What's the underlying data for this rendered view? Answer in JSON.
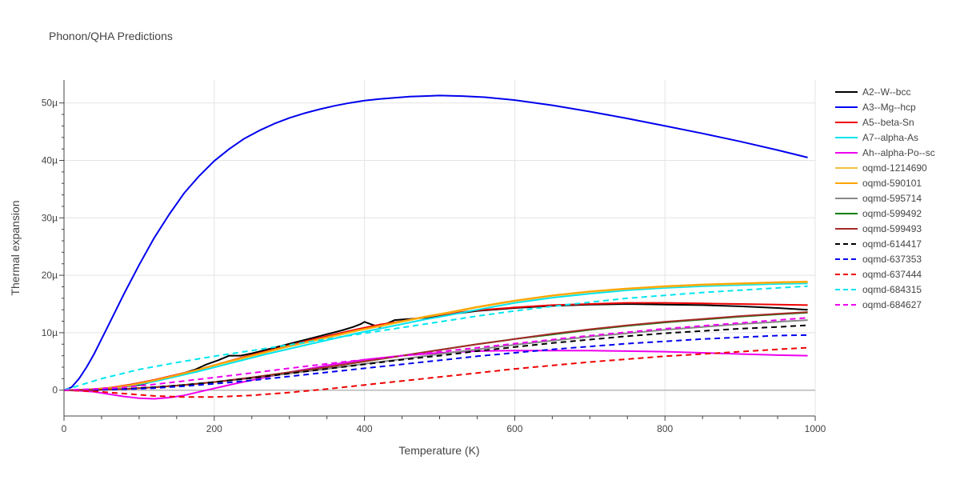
{
  "chart_data": {
    "type": "line",
    "title": "Phonon/QHA Predictions",
    "xlabel": "Temperature (K)",
    "ylabel": "Thermal expansion",
    "xlim": [
      0,
      1000
    ],
    "ylim": [
      -4.5,
      54
    ],
    "x_ticks": [
      0,
      200,
      400,
      600,
      800,
      1000
    ],
    "x_tick_labels": [
      "0",
      "200",
      "400",
      "600",
      "800",
      "1000"
    ],
    "y_ticks": [
      0,
      10,
      20,
      30,
      40,
      50
    ],
    "y_tick_labels": [
      "0",
      "10µ",
      "20µ",
      "30µ",
      "40µ",
      "50µ"
    ],
    "grid": true,
    "legend_position": "right",
    "series": [
      {
        "name": "A2--W--bcc",
        "color": "#000000",
        "dash": "solid",
        "x": [
          0,
          40,
          55,
          70,
          85,
          100,
          115,
          130,
          145,
          160,
          175,
          190,
          205,
          220,
          235,
          250,
          265,
          280,
          295,
          310,
          325,
          340,
          355,
          370,
          385,
          395,
          400,
          410,
          420,
          430,
          440,
          460,
          480,
          500,
          520,
          550,
          600,
          650,
          700,
          750,
          800,
          850,
          900,
          950,
          990
        ],
        "y": [
          0,
          0,
          0.1,
          0.5,
          0.7,
          0.9,
          1.4,
          1.9,
          2.5,
          3.0,
          3.6,
          4.5,
          5.2,
          6.0,
          6.0,
          6.4,
          6.9,
          7.4,
          7.9,
          8.4,
          8.9,
          9.4,
          9.9,
          10.4,
          11.0,
          11.5,
          11.9,
          11.4,
          11.0,
          11.6,
          12.2,
          12.4,
          12.6,
          12.9,
          13.3,
          13.8,
          14.3,
          14.7,
          14.9,
          15.0,
          14.9,
          14.8,
          14.6,
          14.3,
          14.0
        ]
      },
      {
        "name": "A3--Mg--hcp",
        "color": "#0000ee",
        "dash": "solid",
        "x": [
          0,
          10,
          20,
          30,
          40,
          60,
          80,
          100,
          120,
          140,
          160,
          180,
          200,
          220,
          240,
          260,
          280,
          300,
          320,
          340,
          360,
          380,
          400,
          420,
          440,
          460,
          480,
          500,
          530,
          560,
          600,
          650,
          700,
          750,
          800,
          850,
          900,
          950,
          990
        ],
        "y": [
          0,
          0.5,
          2.0,
          4.0,
          6.3,
          11.5,
          16.8,
          21.8,
          26.5,
          30.6,
          34.3,
          37.3,
          39.9,
          42.0,
          43.8,
          45.2,
          46.4,
          47.4,
          48.2,
          48.9,
          49.5,
          50.0,
          50.4,
          50.7,
          50.9,
          51.1,
          51.2,
          51.3,
          51.2,
          51.0,
          50.5,
          49.6,
          48.5,
          47.3,
          46.0,
          44.7,
          43.3,
          41.8,
          40.5
        ]
      },
      {
        "name": "A5--beta-Sn",
        "color": "#ee0000",
        "dash": "solid",
        "x": [
          0,
          30,
          60,
          90,
          120,
          150,
          180,
          210,
          240,
          270,
          300,
          330,
          360,
          390,
          420,
          450,
          480,
          510,
          550,
          600,
          650,
          700,
          750,
          800,
          850,
          900,
          950,
          990
        ],
        "y": [
          0,
          0.1,
          0.4,
          1.0,
          1.8,
          2.7,
          3.6,
          4.7,
          5.8,
          6.8,
          7.8,
          8.8,
          9.7,
          10.6,
          11.4,
          12.0,
          12.7,
          13.3,
          13.9,
          14.4,
          14.8,
          15.0,
          15.2,
          15.2,
          15.1,
          15.0,
          14.9,
          14.8
        ]
      },
      {
        "name": "A7--alpha-As",
        "color": "#00e5ee",
        "dash": "solid",
        "x": [
          0,
          30,
          60,
          90,
          120,
          150,
          180,
          210,
          240,
          270,
          300,
          330,
          360,
          390,
          420,
          450,
          480,
          510,
          550,
          600,
          650,
          700,
          750,
          800,
          850,
          900,
          950,
          990
        ],
        "y": [
          0,
          0.05,
          0.3,
          0.8,
          1.5,
          2.4,
          3.3,
          4.3,
          5.3,
          6.3,
          7.2,
          8.1,
          9.0,
          9.9,
          10.7,
          11.5,
          12.3,
          13.0,
          14.0,
          15.2,
          16.1,
          16.8,
          17.4,
          17.8,
          18.1,
          18.3,
          18.5,
          18.6
        ]
      },
      {
        "name": "Ah--alpha-Po--sc",
        "color": "#ee00ee",
        "dash": "solid",
        "x": [
          0,
          20,
          40,
          60,
          80,
          100,
          120,
          140,
          160,
          180,
          200,
          230,
          260,
          300,
          350,
          400,
          450,
          500,
          550,
          600,
          650,
          700,
          750,
          800,
          850,
          900,
          950,
          990
        ],
        "y": [
          0,
          -0.1,
          -0.3,
          -0.7,
          -1.1,
          -1.4,
          -1.5,
          -1.3,
          -0.9,
          -0.3,
          0.3,
          1.2,
          2.0,
          3.1,
          4.3,
          5.3,
          6.0,
          6.5,
          6.8,
          6.9,
          6.9,
          6.9,
          6.8,
          6.7,
          6.5,
          6.3,
          6.1,
          6.0
        ]
      },
      {
        "name": "oqmd-1214690",
        "color": "#f0c040",
        "dash": "solid",
        "x": [
          0,
          30,
          60,
          90,
          120,
          150,
          180,
          210,
          240,
          270,
          300,
          330,
          360,
          390,
          420,
          450,
          480,
          510,
          550,
          600,
          650,
          700,
          750,
          800,
          850,
          900,
          950,
          990
        ],
        "y": [
          0,
          0.05,
          0.35,
          0.9,
          1.7,
          2.6,
          3.6,
          4.6,
          5.6,
          6.6,
          7.6,
          8.5,
          9.4,
          10.3,
          11.1,
          11.9,
          12.7,
          13.4,
          14.4,
          15.5,
          16.4,
          17.1,
          17.6,
          18.0,
          18.3,
          18.5,
          18.7,
          18.8
        ]
      },
      {
        "name": "oqmd-590101",
        "color": "#ffa500",
        "dash": "solid",
        "x": [
          0,
          30,
          60,
          90,
          120,
          150,
          180,
          210,
          240,
          270,
          300,
          330,
          360,
          390,
          420,
          450,
          480,
          510,
          550,
          600,
          650,
          700,
          750,
          800,
          850,
          900,
          950,
          990
        ],
        "y": [
          0,
          0.05,
          0.35,
          0.9,
          1.7,
          2.6,
          3.6,
          4.7,
          5.7,
          6.7,
          7.7,
          8.6,
          9.5,
          10.4,
          11.2,
          12.0,
          12.8,
          13.5,
          14.5,
          15.6,
          16.5,
          17.2,
          17.7,
          18.1,
          18.4,
          18.6,
          18.8,
          18.9
        ]
      },
      {
        "name": "oqmd-595714",
        "color": "#888888",
        "dash": "solid",
        "x": [
          0,
          40,
          80,
          120,
          160,
          200,
          250,
          300,
          350,
          400,
          450,
          500,
          550,
          600,
          650,
          700,
          750,
          800,
          850,
          900,
          950,
          990
        ],
        "y": [
          0,
          0.05,
          0.2,
          0.5,
          0.9,
          1.4,
          2.1,
          2.9,
          3.7,
          4.6,
          5.4,
          6.3,
          7.1,
          7.9,
          8.6,
          9.3,
          9.9,
          10.5,
          11.0,
          11.5,
          11.9,
          12.2
        ]
      },
      {
        "name": "oqmd-599492",
        "color": "#008000",
        "dash": "solid",
        "x": [
          0,
          40,
          80,
          120,
          160,
          200,
          250,
          300,
          350,
          400,
          450,
          500,
          550,
          600,
          650,
          700,
          750,
          800,
          850,
          900,
          950,
          990
        ],
        "y": [
          0,
          0.05,
          0.2,
          0.5,
          0.9,
          1.4,
          2.2,
          3.1,
          4.0,
          5.0,
          6.0,
          7.0,
          8.0,
          8.9,
          9.7,
          10.5,
          11.2,
          11.8,
          12.3,
          12.8,
          13.2,
          13.5
        ]
      },
      {
        "name": "oqmd-599493",
        "color": "#a52a2a",
        "dash": "solid",
        "x": [
          0,
          40,
          80,
          120,
          160,
          200,
          250,
          300,
          350,
          400,
          450,
          500,
          550,
          600,
          650,
          700,
          750,
          800,
          850,
          900,
          950,
          990
        ],
        "y": [
          0,
          0.05,
          0.2,
          0.5,
          0.9,
          1.4,
          2.2,
          3.1,
          4.0,
          5.0,
          6.0,
          7.0,
          8.0,
          8.9,
          9.8,
          10.6,
          11.3,
          11.9,
          12.4,
          12.9,
          13.3,
          13.6
        ]
      },
      {
        "name": "oqmd-614417",
        "color": "#000000",
        "dash": "dash",
        "x": [
          0,
          40,
          80,
          120,
          160,
          200,
          250,
          300,
          350,
          400,
          450,
          500,
          550,
          600,
          650,
          700,
          750,
          800,
          850,
          900,
          950,
          990
        ],
        "y": [
          0,
          0.05,
          0.2,
          0.5,
          0.9,
          1.4,
          2.1,
          2.9,
          3.7,
          4.5,
          5.3,
          6.0,
          6.8,
          7.5,
          8.2,
          8.8,
          9.4,
          9.9,
          10.3,
          10.7,
          11.0,
          11.3
        ]
      },
      {
        "name": "oqmd-637353",
        "color": "#0000ee",
        "dash": "dash",
        "x": [
          0,
          40,
          80,
          120,
          160,
          200,
          250,
          300,
          350,
          400,
          450,
          500,
          550,
          600,
          650,
          700,
          750,
          800,
          850,
          900,
          950,
          990
        ],
        "y": [
          0,
          0.05,
          0.15,
          0.35,
          0.7,
          1.1,
          1.7,
          2.4,
          3.1,
          3.8,
          4.5,
          5.2,
          5.9,
          6.5,
          7.1,
          7.6,
          8.1,
          8.5,
          8.9,
          9.2,
          9.5,
          9.6
        ]
      },
      {
        "name": "oqmd-637444",
        "color": "#ee0000",
        "dash": "dash",
        "x": [
          0,
          40,
          80,
          120,
          160,
          200,
          250,
          300,
          350,
          400,
          450,
          500,
          550,
          600,
          650,
          700,
          750,
          800,
          850,
          900,
          950,
          990
        ],
        "y": [
          0,
          -0.2,
          -0.6,
          -1.0,
          -1.2,
          -1.2,
          -0.9,
          -0.4,
          0.2,
          0.9,
          1.6,
          2.3,
          3.0,
          3.7,
          4.3,
          4.9,
          5.4,
          5.9,
          6.3,
          6.7,
          7.1,
          7.4
        ]
      },
      {
        "name": "oqmd-684315",
        "color": "#00e5ee",
        "dash": "dash",
        "x": [
          0,
          20,
          50,
          100,
          150,
          200,
          250,
          300,
          350,
          400,
          450,
          500,
          550,
          600,
          650,
          700,
          750,
          800,
          850,
          900,
          950,
          990
        ],
        "y": [
          0,
          0.8,
          2.0,
          3.6,
          4.8,
          5.9,
          6.9,
          7.9,
          8.9,
          9.9,
          10.9,
          11.9,
          12.9,
          13.8,
          14.6,
          15.3,
          16.0,
          16.5,
          17.0,
          17.4,
          17.8,
          18.1
        ]
      },
      {
        "name": "oqmd-684627",
        "color": "#ee00ee",
        "dash": "dash",
        "x": [
          0,
          40,
          80,
          120,
          160,
          200,
          250,
          300,
          350,
          400,
          450,
          500,
          550,
          600,
          650,
          700,
          750,
          800,
          850,
          900,
          950,
          990
        ],
        "y": [
          0,
          0.2,
          0.5,
          1.0,
          1.6,
          2.2,
          3.0,
          3.8,
          4.6,
          5.3,
          6.0,
          6.7,
          7.4,
          8.1,
          8.8,
          9.5,
          10.1,
          10.7,
          11.2,
          11.7,
          12.2,
          12.6
        ]
      }
    ]
  }
}
